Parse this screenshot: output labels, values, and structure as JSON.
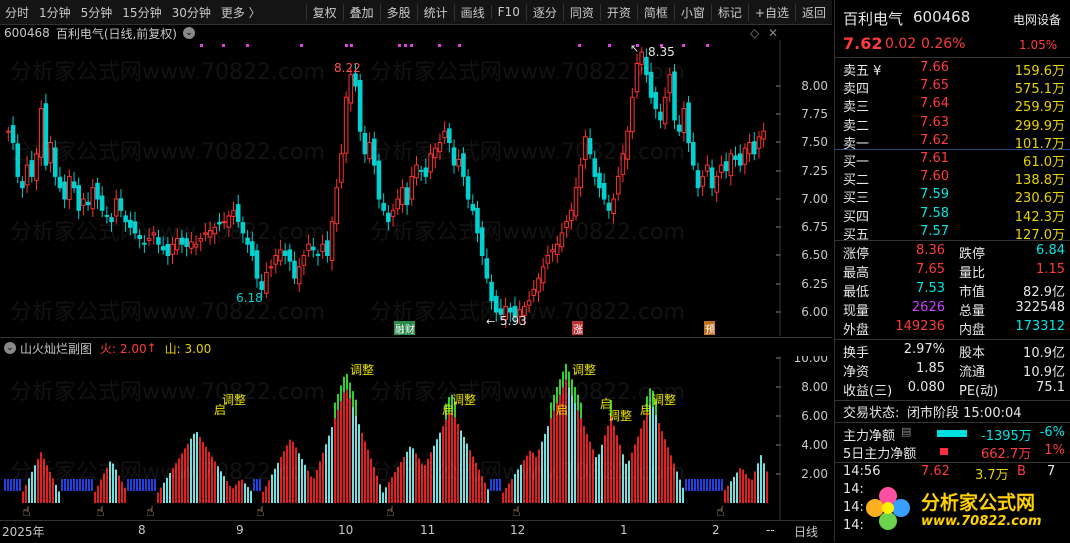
{
  "toolbar": {
    "left": [
      "分时",
      "1分钟",
      "5分钟",
      "15分钟",
      "30分钟",
      "更多 〉"
    ],
    "right": [
      "复权",
      "叠加",
      "多股",
      "统计",
      "画线",
      "F10",
      "逐分",
      "同资",
      "开资",
      "简框",
      "小窗",
      "标记",
      "+自选",
      "返回"
    ]
  },
  "main": {
    "code": "600468",
    "title": "百利电气(日线,前复权)",
    "y_ticks": [
      "8.00",
      "7.75",
      "7.50",
      "7.25",
      "7.00",
      "6.75",
      "6.50",
      "6.25",
      "6.00"
    ],
    "high_label": "8.35",
    "low_label": "5.93",
    "label_822": "8.22",
    "label_618": "6.18",
    "markers": [
      "融",
      "财",
      "涨",
      "预"
    ]
  },
  "sub": {
    "title": "山火灿烂副图",
    "fire_label": "火: 2.00",
    "mountain_label": "山: 3.00",
    "y_ticks": [
      "10.00",
      "8.00",
      "6.00",
      "4.00",
      "2.00"
    ],
    "annotations": [
      "调整",
      "调整",
      "启",
      "调整",
      "启",
      "调整",
      "启",
      "启",
      "调整",
      "启",
      "调整"
    ]
  },
  "xaxis": {
    "labels": [
      "2025年",
      "8",
      "9",
      "10",
      "11",
      "12",
      "1",
      "2"
    ],
    "period": "日线",
    "dash": "--"
  },
  "watermark": "分析家公式网www.70822.com",
  "quote": {
    "name": "百利电气",
    "code": "600468",
    "tag": "电网设备",
    "price": "7.62",
    "change": "0.02",
    "pct": "0.26%",
    "tag_pct": "1.05%",
    "asks": [
      {
        "label": "卖五 ¥",
        "price": "7.66",
        "vol": "159.6万"
      },
      {
        "label": "卖四",
        "price": "7.65",
        "vol": "575.1万"
      },
      {
        "label": "卖三",
        "price": "7.64",
        "vol": "259.9万"
      },
      {
        "label": "卖二",
        "price": "7.63",
        "vol": "299.9万"
      },
      {
        "label": "卖一",
        "price": "7.62",
        "vol": "101.7万"
      }
    ],
    "bids": [
      {
        "label": "买一",
        "price": "7.61",
        "vol": "61.0万"
      },
      {
        "label": "买二",
        "price": "7.60",
        "vol": "138.8万"
      },
      {
        "label": "买三",
        "price": "7.59",
        "vol": "230.6万"
      },
      {
        "label": "买四",
        "price": "7.58",
        "vol": "142.3万"
      },
      {
        "label": "买五",
        "price": "7.57",
        "vol": "127.0万"
      }
    ],
    "stats": [
      {
        "l1": "涨停",
        "v1": "8.36",
        "c1": "red",
        "l2": "跌停",
        "v2": "6.84",
        "c2": "green"
      },
      {
        "l1": "最高",
        "v1": "7.65",
        "c1": "red",
        "l2": "量比",
        "v2": "1.15",
        "c2": "red"
      },
      {
        "l1": "最低",
        "v1": "7.53",
        "c1": "green",
        "l2": "市值",
        "v2": "82.9亿",
        "c2": "wht"
      },
      {
        "l1": "现量",
        "v1": "2626",
        "c1": "purple",
        "l2": "总量",
        "v2": "322548",
        "c2": "wht"
      },
      {
        "l1": "外盘",
        "v1": "149236",
        "c1": "red",
        "l2": "内盘",
        "v2": "173312",
        "c2": "green"
      }
    ],
    "stats2": [
      {
        "l1": "换手",
        "v1": "2.97%",
        "l2": "股本",
        "v2": "10.9亿"
      },
      {
        "l1": "净资",
        "v1": "1.85",
        "l2": "流通",
        "v2": "10.9亿"
      },
      {
        "l1": "收益(三)",
        "v1": "0.080",
        "l2": "PE(动)",
        "v2": "75.1"
      }
    ],
    "trade_status_label": "交易状态:",
    "trade_status": "闭市阶段 15:00:04",
    "flow": [
      {
        "label": "主力净额",
        "amount": "-1395万",
        "pct": "-6%"
      },
      {
        "label": "5日主力净额",
        "amount": "662.7万",
        "pct": "1%"
      }
    ],
    "tick": {
      "time": "14:56",
      "price": "7.62",
      "vol": "3.7万",
      "bs": "B",
      "n": "7"
    },
    "more_times": [
      "14:",
      "14:",
      "14:"
    ]
  },
  "logo": {
    "text": "分析家公式网",
    "url": "www.70822.com"
  }
}
